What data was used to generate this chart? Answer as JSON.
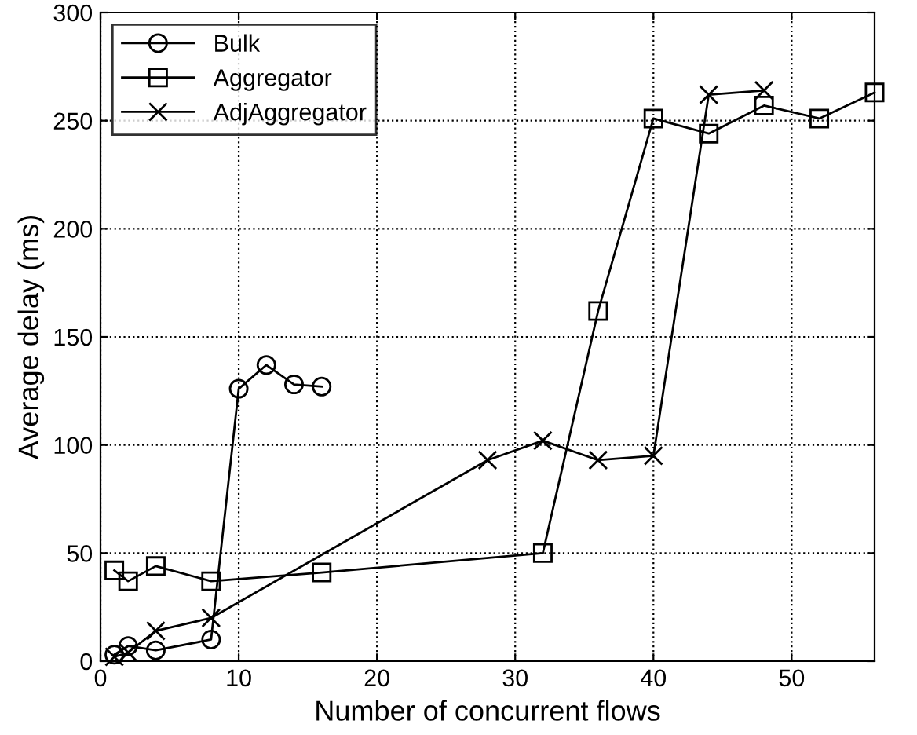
{
  "chart_data": {
    "type": "line",
    "xlabel": "Number of concurrent flows",
    "ylabel": "Average delay (ms)",
    "xlim": [
      0,
      56
    ],
    "xticks": [
      0,
      10,
      20,
      30,
      40,
      50
    ],
    "ylim": [
      0,
      300
    ],
    "yticks": [
      0,
      50,
      100,
      150,
      200,
      250,
      300
    ],
    "grid": true,
    "legend": "top left",
    "series": [
      {
        "name": "Bulk",
        "color": "#000000",
        "marker": "circle",
        "x": [
          1,
          2,
          4,
          8,
          10,
          12,
          14,
          16
        ],
        "values": [
          3,
          7,
          5,
          10,
          126,
          137,
          128,
          127
        ]
      },
      {
        "name": "Aggregator",
        "color": "#000000",
        "marker": "square",
        "x": [
          1,
          2,
          4,
          8,
          16,
          32,
          36,
          40,
          44,
          48,
          52,
          56
        ],
        "values": [
          42,
          37,
          44,
          37,
          41,
          50,
          162,
          251,
          244,
          257,
          251,
          263
        ]
      },
      {
        "name": "AdjAggregator",
        "color": "#000000",
        "marker": "cross",
        "x": [
          1,
          2,
          4,
          8,
          28,
          32,
          36,
          40,
          44,
          48
        ],
        "values": [
          2,
          4,
          14,
          20,
          93,
          102,
          93,
          95,
          262,
          264
        ]
      }
    ]
  }
}
